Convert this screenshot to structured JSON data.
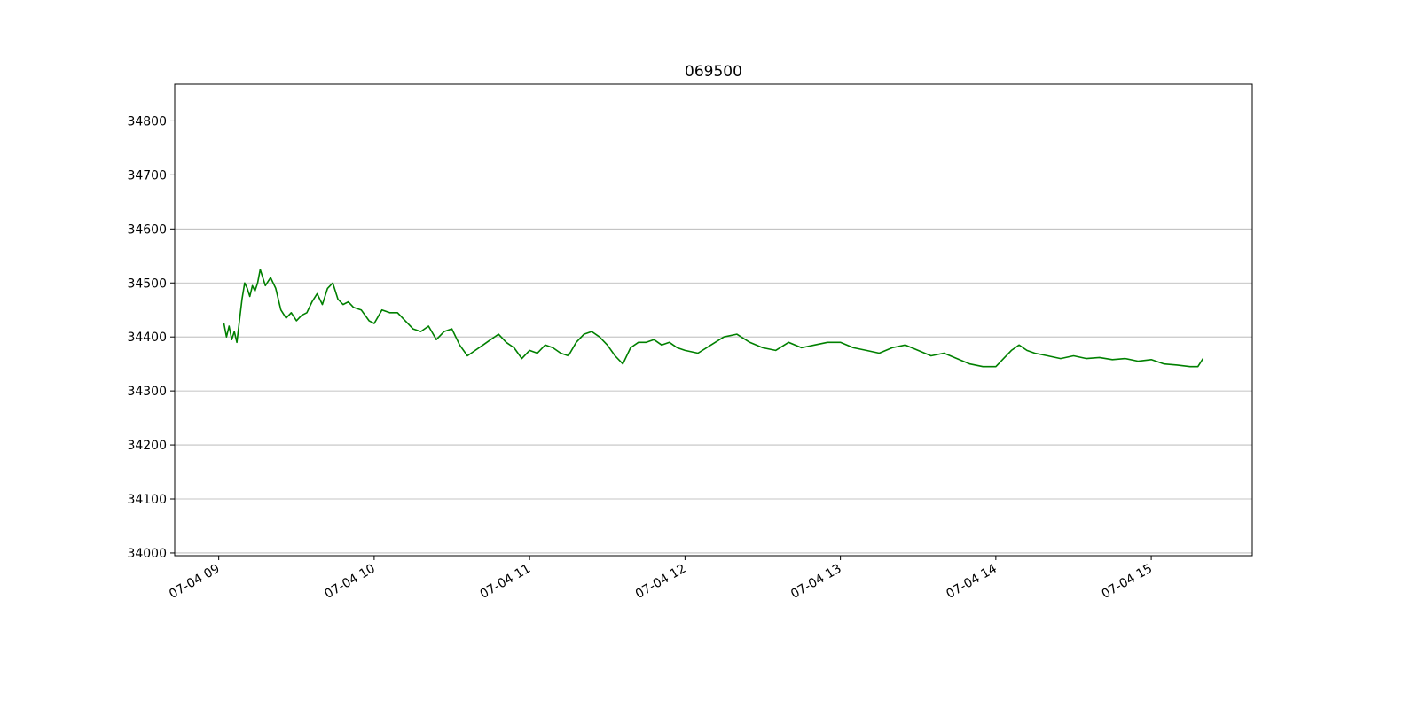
{
  "chart_data": {
    "type": "line",
    "title": "069500",
    "xlabel": "",
    "ylabel": "",
    "grid": "horizontal",
    "color": "#008000",
    "ylim": [
      33995,
      34868
    ],
    "xlim": [
      "07-04 08:43",
      "07-04 15:39"
    ],
    "yticks": [
      34000,
      34100,
      34200,
      34300,
      34400,
      34500,
      34600,
      34700,
      34800
    ],
    "xticks": [
      {
        "time": "09:00",
        "label": "07-04 09"
      },
      {
        "time": "10:00",
        "label": "07-04 10"
      },
      {
        "time": "11:00",
        "label": "07-04 11"
      },
      {
        "time": "12:00",
        "label": "07-04 12"
      },
      {
        "time": "13:00",
        "label": "07-04 13"
      },
      {
        "time": "14:00",
        "label": "07-04 14"
      },
      {
        "time": "15:00",
        "label": "07-04 15"
      }
    ],
    "x": [
      "09:02",
      "09:03",
      "09:04",
      "09:05",
      "09:06",
      "09:07",
      "09:08",
      "09:09",
      "09:10",
      "09:11",
      "09:12",
      "09:13",
      "09:14",
      "09:15",
      "09:16",
      "09:18",
      "09:20",
      "09:22",
      "09:24",
      "09:26",
      "09:28",
      "09:30",
      "09:32",
      "09:34",
      "09:36",
      "09:38",
      "09:40",
      "09:42",
      "09:44",
      "09:46",
      "09:48",
      "09:50",
      "09:52",
      "09:55",
      "09:58",
      "10:00",
      "10:03",
      "10:06",
      "10:09",
      "10:12",
      "10:15",
      "10:18",
      "10:21",
      "10:24",
      "10:27",
      "10:30",
      "10:33",
      "10:36",
      "10:39",
      "10:42",
      "10:45",
      "10:48",
      "10:51",
      "10:54",
      "10:57",
      "11:00",
      "11:03",
      "11:06",
      "11:09",
      "11:12",
      "11:15",
      "11:18",
      "11:21",
      "11:24",
      "11:27",
      "11:30",
      "11:33",
      "11:36",
      "11:39",
      "11:42",
      "11:45",
      "11:48",
      "11:51",
      "11:54",
      "11:57",
      "12:00",
      "12:05",
      "12:10",
      "12:15",
      "12:20",
      "12:25",
      "12:30",
      "12:35",
      "12:40",
      "12:45",
      "12:50",
      "12:55",
      "13:00",
      "13:05",
      "13:10",
      "13:15",
      "13:20",
      "13:25",
      "13:30",
      "13:35",
      "13:40",
      "13:45",
      "13:50",
      "13:55",
      "14:00",
      "14:03",
      "14:06",
      "14:09",
      "14:12",
      "14:15",
      "14:20",
      "14:25",
      "14:30",
      "14:35",
      "14:40",
      "14:45",
      "14:50",
      "14:55",
      "15:00",
      "15:05",
      "15:10",
      "15:15",
      "15:18",
      "15:20"
    ],
    "values": [
      34425,
      34400,
      34420,
      34395,
      34410,
      34390,
      34430,
      34470,
      34500,
      34490,
      34475,
      34495,
      34485,
      34500,
      34525,
      34495,
      34510,
      34490,
      34450,
      34435,
      34445,
      34430,
      34440,
      34445,
      34465,
      34480,
      34460,
      34490,
      34500,
      34470,
      34460,
      34465,
      34455,
      34450,
      34430,
      34425,
      34450,
      34445,
      34445,
      34430,
      34415,
      34410,
      34420,
      34395,
      34410,
      34415,
      34385,
      34365,
      34375,
      34385,
      34395,
      34405,
      34390,
      34380,
      34360,
      34375,
      34370,
      34385,
      34380,
      34370,
      34365,
      34390,
      34405,
      34410,
      34400,
      34385,
      34365,
      34350,
      34380,
      34390,
      34390,
      34395,
      34385,
      34390,
      34380,
      34375,
      34370,
      34385,
      34400,
      34405,
      34390,
      34380,
      34375,
      34390,
      34380,
      34385,
      34390,
      34390,
      34380,
      34375,
      34370,
      34380,
      34385,
      34375,
      34365,
      34370,
      34360,
      34350,
      34345,
      34345,
      34360,
      34375,
      34385,
      34375,
      34370,
      34365,
      34360,
      34365,
      34360,
      34362,
      34358,
      34360,
      34355,
      34358,
      34350,
      34348,
      34345,
      34345,
      34360
    ]
  }
}
